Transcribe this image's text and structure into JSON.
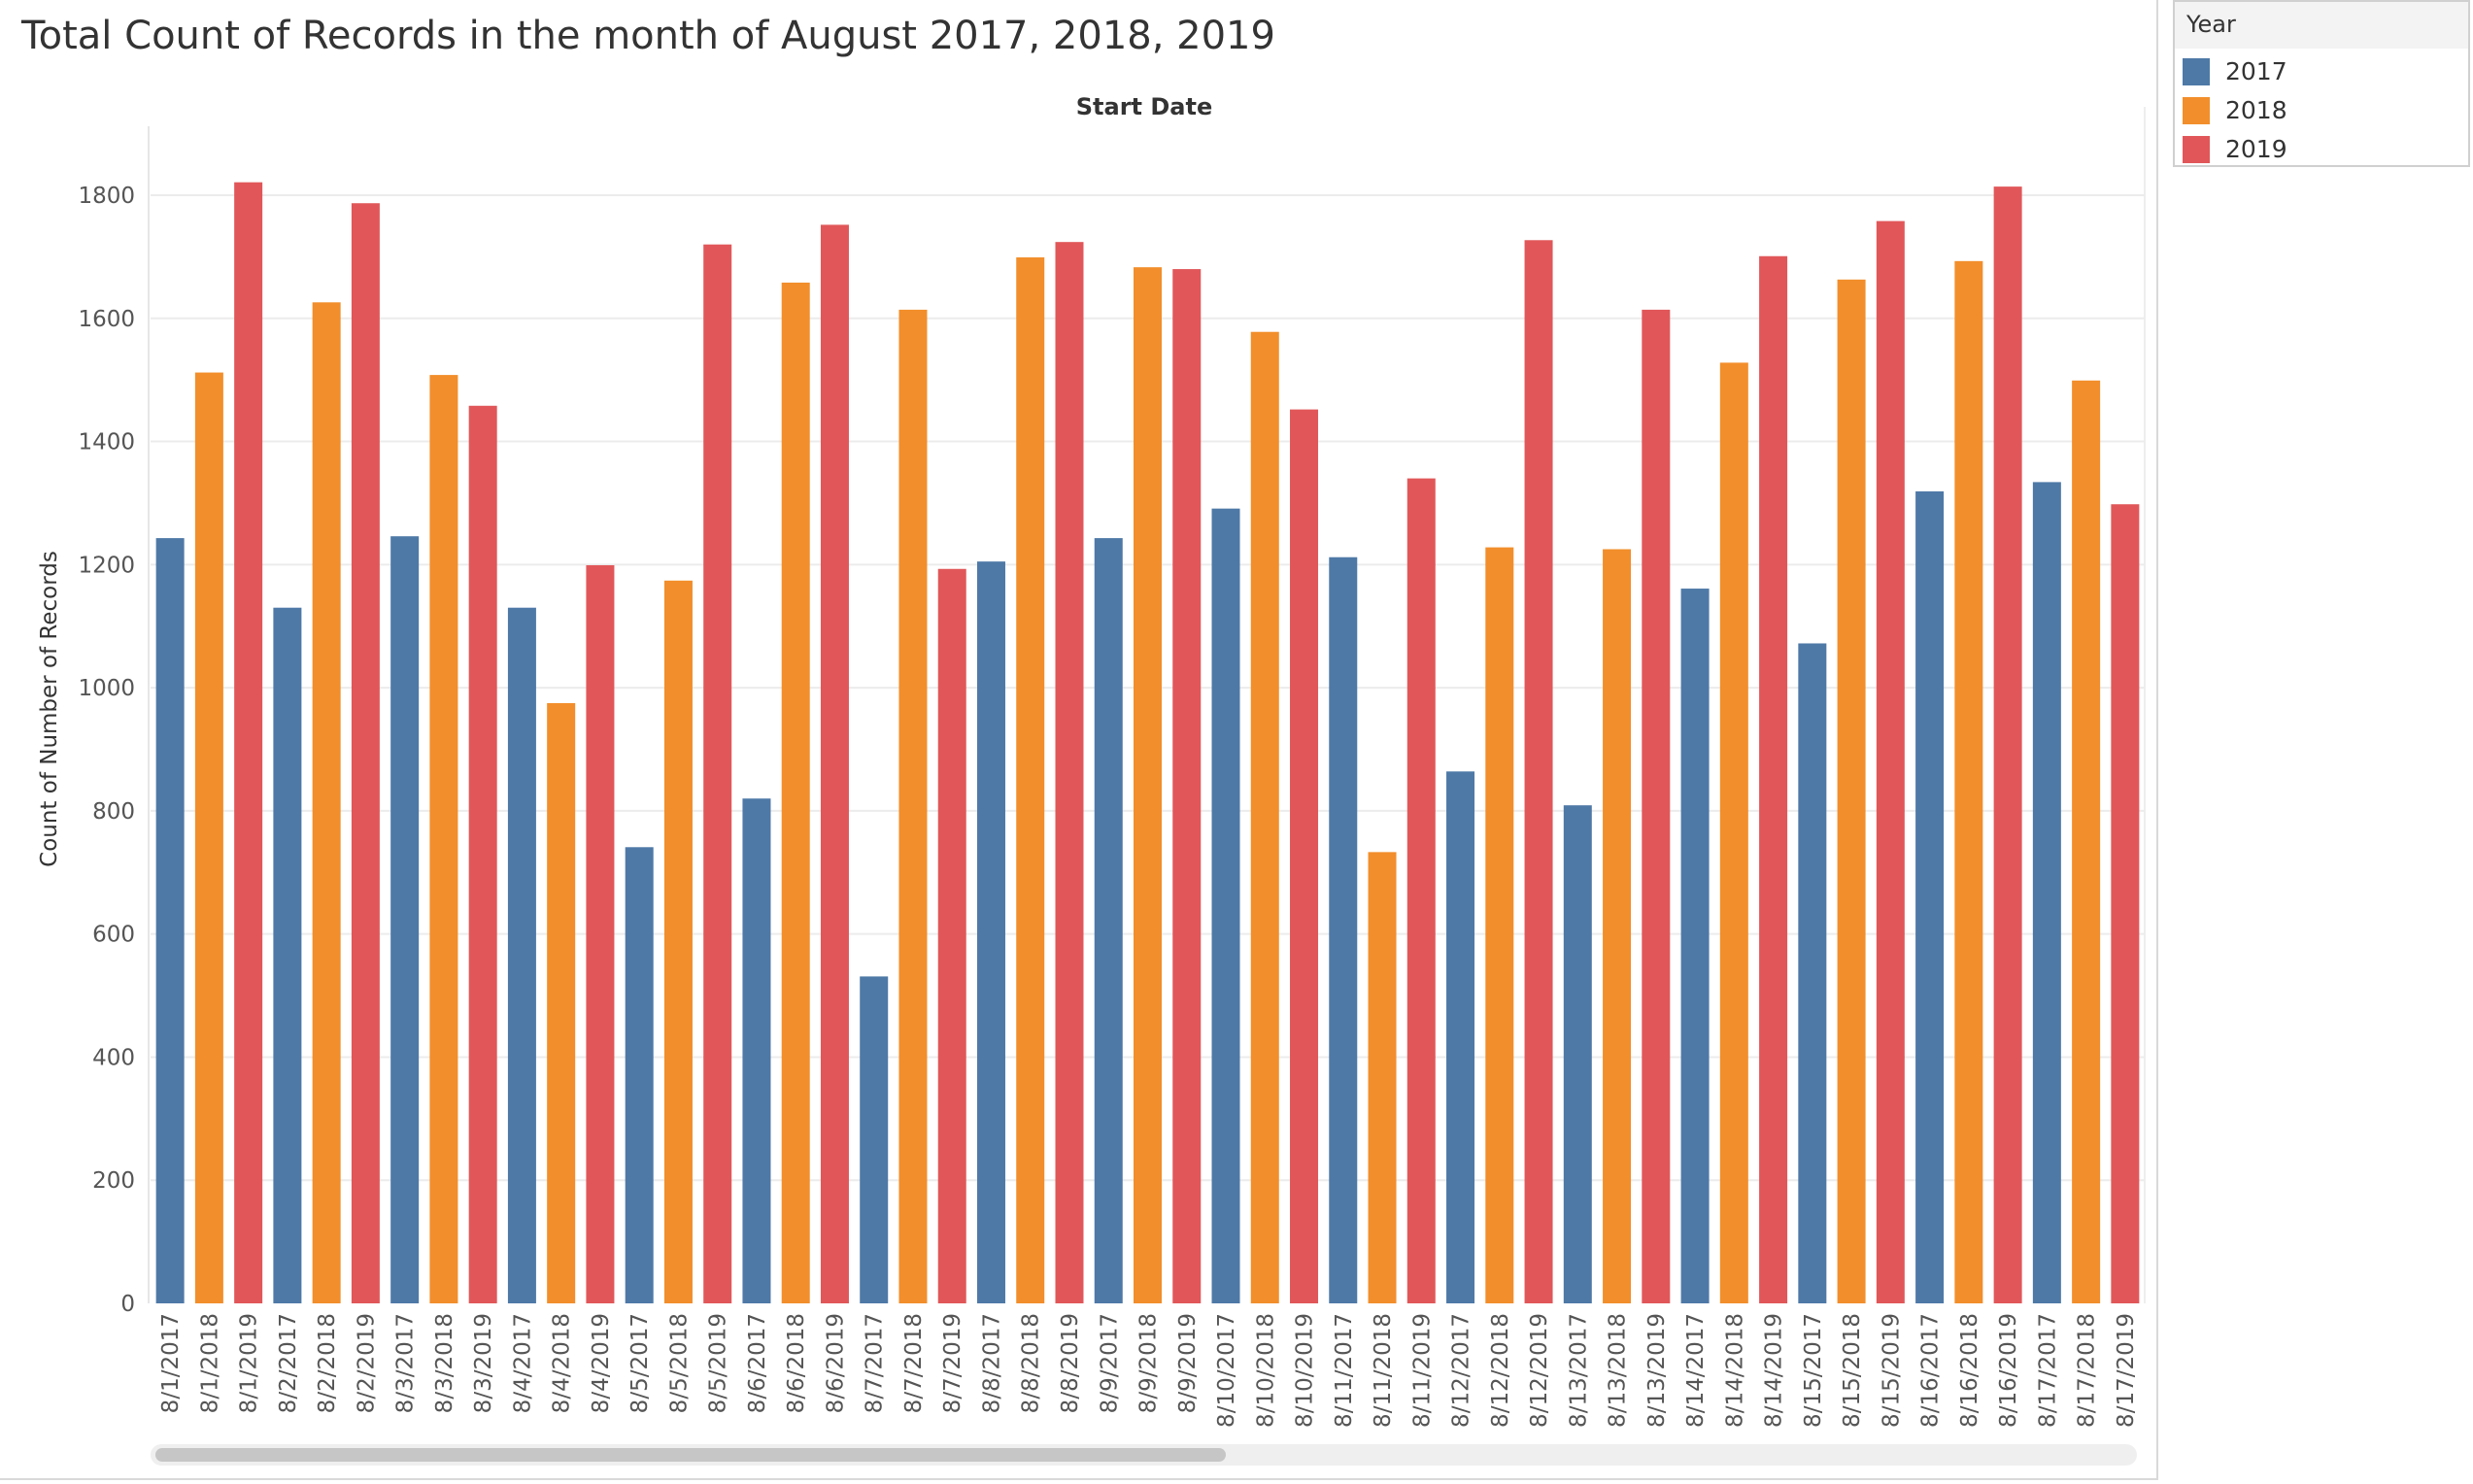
{
  "title": "Total Count of Records in the month of August 2017, 2018, 2019",
  "legend": {
    "title": "Year",
    "items": [
      {
        "label": "2017",
        "color": "#4e79a7"
      },
      {
        "label": "2018",
        "color": "#f28e2b"
      },
      {
        "label": "2019",
        "color": "#e15759"
      }
    ]
  },
  "chart_data": {
    "type": "bar",
    "title": "Total Count of Records in the month of August 2017, 2018, 2019",
    "column_header": "Start Date",
    "ylabel": "Count of Number of Records",
    "xlabel": "",
    "ylim": [
      0,
      1800
    ],
    "yticks": [
      0,
      200,
      400,
      600,
      800,
      1000,
      1200,
      1400,
      1600,
      1800
    ],
    "grid": true,
    "legend_position": "top-right",
    "series_colors": {
      "2017": "#4e79a7",
      "2018": "#f28e2b",
      "2019": "#e15759"
    },
    "bars": [
      {
        "label": "8/1/2017",
        "year": "2017",
        "value": 1243
      },
      {
        "label": "8/1/2018",
        "year": "2018",
        "value": 1512
      },
      {
        "label": "8/1/2019",
        "year": "2019",
        "value": 1821
      },
      {
        "label": "8/2/2017",
        "year": "2017",
        "value": 1130
      },
      {
        "label": "8/2/2018",
        "year": "2018",
        "value": 1626
      },
      {
        "label": "8/2/2019",
        "year": "2019",
        "value": 1787
      },
      {
        "label": "8/3/2017",
        "year": "2017",
        "value": 1246
      },
      {
        "label": "8/3/2018",
        "year": "2018",
        "value": 1508
      },
      {
        "label": "8/3/2019",
        "year": "2019",
        "value": 1458
      },
      {
        "label": "8/4/2017",
        "year": "2017",
        "value": 1130
      },
      {
        "label": "8/4/2018",
        "year": "2018",
        "value": 975
      },
      {
        "label": "8/4/2019",
        "year": "2019",
        "value": 1199
      },
      {
        "label": "8/5/2017",
        "year": "2017",
        "value": 741
      },
      {
        "label": "8/5/2018",
        "year": "2018",
        "value": 1174
      },
      {
        "label": "8/5/2019",
        "year": "2019",
        "value": 1720
      },
      {
        "label": "8/6/2017",
        "year": "2017",
        "value": 820
      },
      {
        "label": "8/6/2018",
        "year": "2018",
        "value": 1658
      },
      {
        "label": "8/6/2019",
        "year": "2019",
        "value": 1752
      },
      {
        "label": "8/7/2017",
        "year": "2017",
        "value": 531
      },
      {
        "label": "8/7/2018",
        "year": "2018",
        "value": 1614
      },
      {
        "label": "8/7/2019",
        "year": "2019",
        "value": 1193
      },
      {
        "label": "8/8/2017",
        "year": "2017",
        "value": 1205
      },
      {
        "label": "8/8/2018",
        "year": "2018",
        "value": 1699
      },
      {
        "label": "8/8/2019",
        "year": "2019",
        "value": 1724
      },
      {
        "label": "8/9/2017",
        "year": "2017",
        "value": 1243
      },
      {
        "label": "8/9/2018",
        "year": "2018",
        "value": 1683
      },
      {
        "label": "8/9/2019",
        "year": "2019",
        "value": 1680
      },
      {
        "label": "8/10/2017",
        "year": "2017",
        "value": 1291
      },
      {
        "label": "8/10/2018",
        "year": "2018",
        "value": 1578
      },
      {
        "label": "8/10/2019",
        "year": "2019",
        "value": 1452
      },
      {
        "label": "8/11/2017",
        "year": "2017",
        "value": 1212
      },
      {
        "label": "8/11/2018",
        "year": "2018",
        "value": 733
      },
      {
        "label": "8/11/2019",
        "year": "2019",
        "value": 1340
      },
      {
        "label": "8/12/2017",
        "year": "2017",
        "value": 864
      },
      {
        "label": "8/12/2018",
        "year": "2018",
        "value": 1228
      },
      {
        "label": "8/12/2019",
        "year": "2019",
        "value": 1727
      },
      {
        "label": "8/13/2017",
        "year": "2017",
        "value": 809
      },
      {
        "label": "8/13/2018",
        "year": "2018",
        "value": 1225
      },
      {
        "label": "8/13/2019",
        "year": "2019",
        "value": 1614
      },
      {
        "label": "8/14/2017",
        "year": "2017",
        "value": 1161
      },
      {
        "label": "8/14/2018",
        "year": "2018",
        "value": 1528
      },
      {
        "label": "8/14/2019",
        "year": "2019",
        "value": 1701
      },
      {
        "label": "8/15/2017",
        "year": "2017",
        "value": 1072
      },
      {
        "label": "8/15/2018",
        "year": "2018",
        "value": 1663
      },
      {
        "label": "8/15/2019",
        "year": "2019",
        "value": 1758
      },
      {
        "label": "8/16/2017",
        "year": "2017",
        "value": 1319
      },
      {
        "label": "8/16/2018",
        "year": "2018",
        "value": 1693
      },
      {
        "label": "8/16/2019",
        "year": "2019",
        "value": 1814
      },
      {
        "label": "8/17/2017",
        "year": "2017",
        "value": 1334
      },
      {
        "label": "8/17/2018",
        "year": "2018",
        "value": 1499
      },
      {
        "label": "8/17/2019",
        "year": "2019",
        "value": 1298
      }
    ]
  }
}
